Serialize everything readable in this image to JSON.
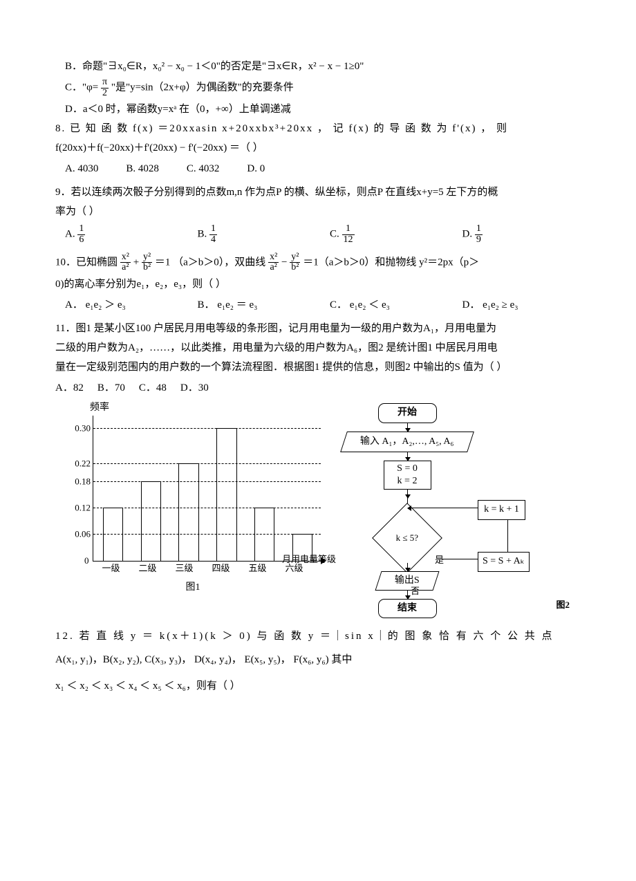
{
  "q7": {
    "B": "B．命题\"∃x₀∈R，x₀² − x₀ − 1＜0\"的否定是\"∃x∈R，x² − x − 1≥0\"",
    "C_pre": "C．\"φ= ",
    "C_frac": {
      "num": "π",
      "den": "2"
    },
    "C_post": "\"是\"y=sin（2x+φ）为偶函数\"的充要条件",
    "D": "D．a＜0 时，幂函数y=xᵃ 在（0，+∞）上单调递减"
  },
  "q8": {
    "l1": "8. 已 知 函 数 f(x)  ＝20xxasin x+20xxbx³+20xx ， 记 f(x)  的 导 函 数 为 f'(x) ， 则",
    "l2": "f(20xx)＋f(−20xx)＋f'(20xx) − f'(−20xx) ＝（ ）",
    "A": "A. 4030",
    "B": "B. 4028",
    "C": "C. 4032",
    "D": "D. 0"
  },
  "q9": {
    "l1": "9．若以连续两次骰子分别得到的点数m,n 作为点P 的横、纵坐标，则点P 在直线x+y=5 左下方的概",
    "l2": "率为（ ）",
    "A": "A.",
    "B": "B.",
    "C": "C.",
    "D": "D.",
    "fracA": {
      "num": "1",
      "den": "6"
    },
    "fracB": {
      "num": "1",
      "den": "4"
    },
    "fracC": {
      "num": "1",
      "den": "12"
    },
    "fracD": {
      "num": "1",
      "den": "9"
    }
  },
  "q10": {
    "pre": "10．已知椭圆",
    "ell_x": {
      "num": "x²",
      "den": "a²"
    },
    "plus": " + ",
    "ell_y": {
      "num": "y²",
      "den": "b²"
    },
    "mid1": "＝1 （a＞b＞0），双曲线",
    "hyp_x": {
      "num": "x²",
      "den": "a²"
    },
    "minus": " − ",
    "hyp_y": {
      "num": "y²",
      "den": "b²"
    },
    "mid2": "＝1（a＞b＞0）和抛物线 y²＝2px（p＞",
    "l2": "0)的离心率分别为e₁，e₂，e₃，则（ ）",
    "A": "A． e₁e₂ ＞ e₃",
    "B": "B． e₁e₂ ＝ e₃",
    "C": "C． e₁e₂ ＜ e₃",
    "D": "D． e₁e₂ ≥ e₃"
  },
  "q11": {
    "l1": "11．图1 是某小区100 户居民月用电等级的条形图，记月用电量为一级的用户数为A₁，月用电量为",
    "l2": "二级的用户数为A₂，……，以此类推，用电量为六级的用户数为A₆，图2 是统计图1 中居民月用电",
    "l3": "量在一定级别范围内的用户数的一个算法流程图．根据图1 提供的信息，则图2 中输出的S 值为（ ）",
    "A": "A．82",
    "B": "B．70",
    "C": "C．48",
    "D": "D．30"
  },
  "chart": {
    "ylabel": "频率",
    "ymax": 0.33,
    "ticks": [
      0.3,
      0.22,
      0.18,
      0.12,
      0.06
    ],
    "zero": "0",
    "categories": [
      "一级",
      "二级",
      "三级",
      "四级",
      "五级",
      "六级"
    ],
    "values": [
      0.12,
      0.18,
      0.22,
      0.3,
      0.12,
      0.06
    ],
    "xtitle": "月用电量等级",
    "caption": "图1"
  },
  "flow": {
    "start": "开始",
    "input": "输入 A₁，A₂,…, A₅, A₆",
    "init1": "S = 0",
    "init2": "k = 2",
    "incr": "k = k + 1",
    "cond": "k ≤ 5?",
    "acc": "S = S + Aₖ",
    "yes": "是",
    "no": "否",
    "out": "输出S",
    "end": "结束",
    "caption": "图2"
  },
  "q12": {
    "l1": "12. 若 直 线 y ＝ k(x＋1)(k ＞ 0)  与 函 数 y ＝｜sin x｜的 图 象 恰 有 六 个 公 共 点",
    "l2": "A(x₁, y₁)，B(x₂, y₂),  C(x₃, y₃)， D(x₄, y₄)， E(x₅, y₅)， F(x₆, y₆) 其中",
    "l3": "x₁ ＜ x₂ ＜ x₃ ＜ x₄ ＜ x₅ ＜ x₆，则有（ ）"
  }
}
